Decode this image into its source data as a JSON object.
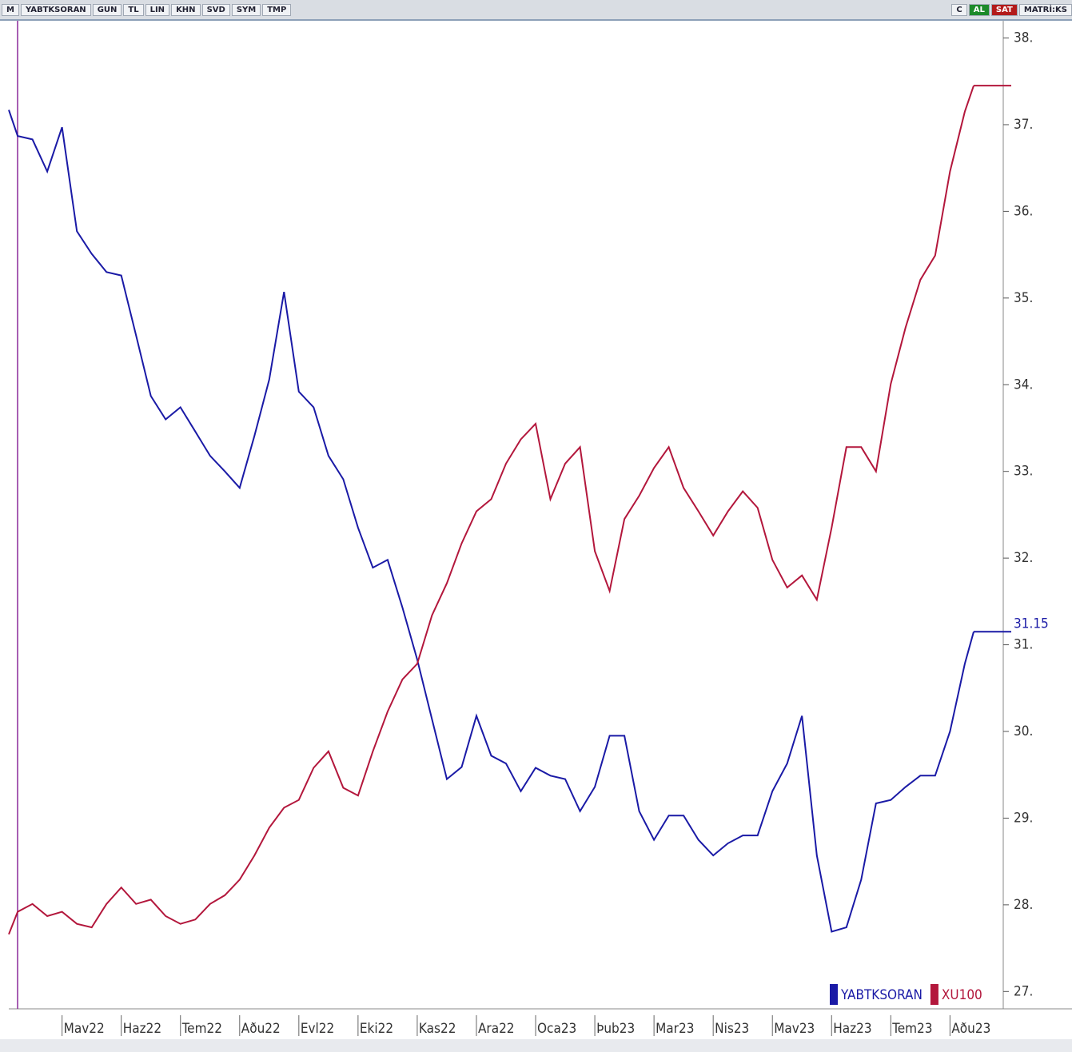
{
  "toolbar": {
    "left": [
      "M",
      "YABTKSORAN",
      "GUN",
      "TL",
      "LIN",
      "KHN",
      "SVD",
      "SYM",
      "TMP"
    ],
    "right": [
      "C",
      "AL",
      "SAT",
      "MATRİ:KS"
    ]
  },
  "chart_data": {
    "type": "line",
    "x": [
      0.1,
      0.25,
      0.5,
      0.75,
      1,
      1.25,
      1.5,
      1.75,
      2,
      2.25,
      2.5,
      2.75,
      3,
      3.25,
      3.5,
      3.75,
      4,
      4.25,
      4.5,
      4.75,
      5,
      5.25,
      5.5,
      5.75,
      6,
      6.25,
      6.5,
      6.75,
      7,
      7.25,
      7.5,
      7.75,
      8,
      8.25,
      8.5,
      8.75,
      9,
      9.25,
      9.5,
      9.75,
      10,
      10.25,
      10.5,
      10.75,
      11,
      11.25,
      11.5,
      11.75,
      12,
      12.25,
      12.5,
      12.75,
      13,
      13.25,
      13.5,
      13.75,
      14,
      14.25,
      14.5,
      14.75,
      15,
      15.25,
      15.5,
      15.75,
      16,
      16.25,
      16.4
    ],
    "series": [
      {
        "name": "YABTKSORAN",
        "color": "#1a1aa6",
        "values": [
          37.17,
          36.87,
          36.83,
          36.46,
          36.97,
          35.77,
          35.51,
          35.3,
          35.26,
          34.57,
          33.87,
          33.6,
          33.74,
          33.46,
          33.18,
          33.0,
          32.81,
          33.41,
          34.06,
          35.07,
          33.92,
          33.74,
          33.18,
          32.91,
          32.35,
          31.89,
          31.98,
          31.43,
          30.83,
          30.14,
          29.45,
          29.59,
          30.18,
          29.72,
          29.63,
          29.31,
          29.58,
          29.49,
          29.45,
          29.08,
          29.36,
          29.95,
          29.95,
          29.08,
          28.75,
          29.03,
          29.03,
          28.75,
          28.57,
          28.71,
          28.8,
          28.8,
          29.31,
          29.63,
          30.18,
          28.57,
          27.69,
          27.74,
          28.29,
          29.17,
          29.21,
          29.36,
          29.49,
          29.49,
          30.0,
          30.78,
          31.15
        ]
      },
      {
        "name": "XU100",
        "color": "#b3173c",
        "values": [
          27.66,
          27.92,
          28.01,
          27.87,
          27.92,
          27.78,
          27.74,
          28.01,
          28.2,
          28.01,
          28.06,
          27.87,
          27.78,
          27.83,
          28.01,
          28.11,
          28.29,
          28.57,
          28.89,
          29.12,
          29.21,
          29.58,
          29.77,
          29.35,
          29.26,
          29.77,
          30.23,
          30.6,
          30.78,
          31.34,
          31.71,
          32.17,
          32.54,
          32.68,
          33.09,
          33.37,
          33.55,
          32.68,
          33.09,
          33.28,
          32.08,
          31.62,
          32.45,
          32.72,
          33.04,
          33.28,
          32.81,
          32.54,
          32.26,
          32.54,
          32.77,
          32.58,
          31.98,
          31.66,
          31.8,
          31.52,
          32.35,
          33.28,
          33.28,
          33.0,
          34.01,
          34.66,
          35.21,
          35.49,
          36.46,
          37.15,
          37.45
        ]
      }
    ],
    "last_value": {
      "value": 31.15,
      "label": "31.15"
    },
    "xlim": [
      0.1,
      16.9
    ],
    "xticks": [
      {
        "value": 1,
        "label": "Mav22"
      },
      {
        "value": 2,
        "label": "Haz22"
      },
      {
        "value": 3,
        "label": "Tem22"
      },
      {
        "value": 4,
        "label": "Aðu22"
      },
      {
        "value": 5,
        "label": "Evl22"
      },
      {
        "value": 6,
        "label": "Eki22"
      },
      {
        "value": 7,
        "label": "Kas22"
      },
      {
        "value": 8,
        "label": "Ara22"
      },
      {
        "value": 9,
        "label": "Oca23"
      },
      {
        "value": 10,
        "label": "Þub23"
      },
      {
        "value": 11,
        "label": "Mar23"
      },
      {
        "value": 12,
        "label": "Nis23"
      },
      {
        "value": 13,
        "label": "Mav23"
      },
      {
        "value": 14,
        "label": "Haz23"
      },
      {
        "value": 15,
        "label": "Tem23"
      },
      {
        "value": 16,
        "label": "Aðu23"
      }
    ],
    "ylim": [
      26.8,
      38.18
    ],
    "yticks": [
      {
        "value": 27,
        "label": "27."
      },
      {
        "value": 28,
        "label": "28."
      },
      {
        "value": 29,
        "label": "29."
      },
      {
        "value": 30,
        "label": "30."
      },
      {
        "value": 31,
        "label": "31."
      },
      {
        "value": 32,
        "label": "32."
      },
      {
        "value": 33,
        "label": "33."
      },
      {
        "value": 34,
        "label": "34."
      },
      {
        "value": 35,
        "label": "35."
      },
      {
        "value": 36,
        "label": "36."
      },
      {
        "value": 37,
        "label": "37."
      },
      {
        "value": 38,
        "label": "38."
      }
    ],
    "legend": "bottom-right"
  }
}
